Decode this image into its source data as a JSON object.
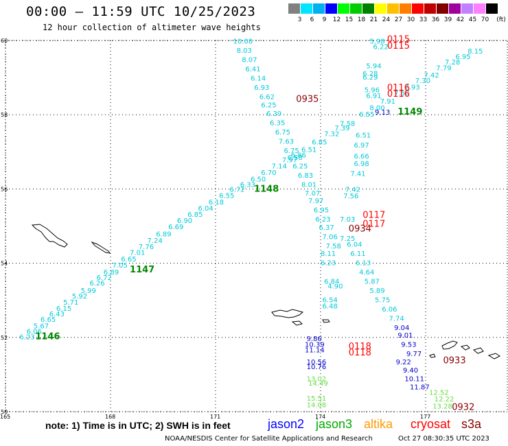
{
  "header": {
    "title": "00:00 — 11:59 UTC 10/25/2023",
    "subtitle": "12 hour collection of altimeter wave heights"
  },
  "legend": {
    "unit_label": "(ft)",
    "bins": [
      {
        "label": "3",
        "color": "#808080"
      },
      {
        "label": "6",
        "color": "#00e5ff"
      },
      {
        "label": "9",
        "color": "#00b0f0"
      },
      {
        "label": "12",
        "color": "#0000ff"
      },
      {
        "label": "15",
        "color": "#00ff00"
      },
      {
        "label": "18",
        "color": "#00cc00"
      },
      {
        "label": "21",
        "color": "#008000"
      },
      {
        "label": "24",
        "color": "#ffff00"
      },
      {
        "label": "27",
        "color": "#ffc000"
      },
      {
        "label": "30",
        "color": "#ff8000"
      },
      {
        "label": "33",
        "color": "#ff0000"
      },
      {
        "label": "36",
        "color": "#c00000"
      },
      {
        "label": "39",
        "color": "#800000"
      },
      {
        "label": "42",
        "color": "#a000a0"
      },
      {
        "label": "45",
        "color": "#c080ff"
      },
      {
        "label": "70",
        "color": "#ff80ff"
      },
      {
        "label": "",
        "color": "#000000"
      }
    ]
  },
  "map": {
    "lon_range": [
      165,
      178
    ],
    "lat_range": [
      50,
      60
    ],
    "lat_ticks": [
      "60",
      "58",
      "56",
      "54",
      "52",
      "50"
    ],
    "lon_ticks": [
      "165",
      "168",
      "171",
      "174",
      "177"
    ],
    "colors": {
      "cyan": "#00c8d8",
      "blue": "#0000cc",
      "green_light": "#66dd44",
      "green_dark": "#008800",
      "red": "#ff0000",
      "dark_red": "#880000"
    },
    "tracks": {
      "sw_ne": [
        [
          "6.23",
          165.4,
          51.95
        ],
        [
          "6.06",
          165.6,
          52.1
        ],
        [
          "5.67",
          165.8,
          52.25
        ],
        [
          "6.65",
          166.0,
          52.42
        ],
        [
          "6.43",
          166.25,
          52.57
        ],
        [
          "6.15",
          166.45,
          52.72
        ],
        [
          "5.71",
          166.65,
          52.88
        ],
        [
          "5.92",
          166.9,
          53.05
        ],
        [
          "5.99",
          167.15,
          53.2
        ],
        [
          "6.26",
          167.4,
          53.4
        ],
        [
          "6.72",
          167.6,
          53.55
        ],
        [
          "6.89",
          167.8,
          53.7
        ],
        [
          "7.05",
          168.05,
          53.88
        ],
        [
          "6.65",
          168.3,
          54.05
        ],
        [
          "7.01",
          168.55,
          54.22
        ],
        [
          "7.76",
          168.8,
          54.38
        ],
        [
          "7.24",
          169.05,
          54.55
        ],
        [
          "6.89",
          169.3,
          54.72
        ],
        [
          "6.69",
          169.65,
          54.92
        ],
        [
          "6.90",
          169.9,
          55.08
        ],
        [
          "6.85",
          170.2,
          55.25
        ],
        [
          "6.04",
          170.5,
          55.42
        ],
        [
          "6.18",
          170.8,
          55.58
        ],
        [
          "6.55",
          171.1,
          55.76
        ],
        [
          "6.72",
          171.4,
          55.92
        ],
        [
          "6.33",
          171.7,
          56.05
        ],
        [
          "6.50",
          172.0,
          56.2
        ],
        [
          "6.70",
          172.3,
          56.38
        ],
        [
          "7.14",
          172.6,
          56.55
        ],
        [
          "7.97",
          172.9,
          56.72
        ],
        [
          "6.86",
          173.15,
          56.85
        ],
        [
          "6.51",
          173.45,
          57.0
        ],
        [
          "6.85",
          173.75,
          57.2
        ],
        [
          "7.32",
          174.1,
          57.42
        ],
        [
          "7.39",
          174.4,
          57.58
        ],
        [
          "7.58",
          174.55,
          57.7
        ],
        [
          "8.00",
          175.4,
          58.12
        ],
        [
          "7.91",
          175.7,
          58.3
        ],
        [
          "7.58",
          176.1,
          58.52
        ],
        [
          "7.93",
          176.4,
          58.68
        ],
        [
          "7.30",
          176.7,
          58.85
        ],
        [
          "7.42",
          176.95,
          59.0
        ],
        [
          "7.79",
          177.3,
          59.2
        ],
        [
          "7.28",
          177.55,
          59.35
        ],
        [
          "6.95",
          177.85,
          59.5
        ],
        [
          "8.15",
          178.2,
          59.65
        ]
      ],
      "nw_se": [
        [
          "10.08",
          171.5,
          59.92
        ],
        [
          "8.03",
          171.6,
          59.67
        ],
        [
          "8.07",
          171.75,
          59.42
        ],
        [
          "6.41",
          171.85,
          59.17
        ],
        [
          "6.14",
          172.0,
          58.92
        ],
        [
          "6.93",
          172.1,
          58.67
        ],
        [
          "6.62",
          172.25,
          58.42
        ],
        [
          "6.25",
          172.3,
          58.2
        ],
        [
          "6.39",
          172.45,
          57.97
        ],
        [
          "6.35",
          172.55,
          57.72
        ],
        [
          "6.75",
          172.7,
          57.47
        ],
        [
          "7.63",
          172.8,
          57.22
        ],
        [
          "6.75",
          172.95,
          56.97
        ],
        [
          "6.58",
          173.05,
          56.78
        ],
        [
          "6.25",
          173.2,
          56.55
        ],
        [
          "6.83",
          173.35,
          56.3
        ],
        [
          "8.01",
          173.45,
          56.05
        ],
        [
          "7.07",
          173.55,
          55.82
        ],
        [
          "7.97",
          173.65,
          55.62
        ],
        [
          "6.95",
          173.8,
          55.37
        ],
        [
          "6.23",
          173.85,
          55.12
        ],
        [
          "6.37",
          173.95,
          54.9
        ],
        [
          "7.06",
          174.05,
          54.65
        ],
        [
          "7.58",
          174.15,
          54.4
        ],
        [
          "8.11",
          174.0,
          54.2
        ],
        [
          "6.23",
          174.0,
          53.95
        ],
        [
          "6.84",
          174.1,
          53.45
        ],
        [
          "4.90",
          174.2,
          53.32
        ],
        [
          "6.54",
          174.05,
          52.95
        ],
        [
          "6.48",
          174.05,
          52.78
        ]
      ],
      "middle": [
        [
          "6.55",
          175.1,
          57.95
        ],
        [
          "6.51",
          175.0,
          57.38
        ],
        [
          "6.97",
          174.95,
          57.12
        ],
        [
          "6.66",
          174.95,
          56.82
        ],
        [
          "6.98",
          174.95,
          56.62
        ],
        [
          "7.41",
          174.85,
          56.35
        ],
        [
          "7.42",
          174.7,
          55.92
        ],
        [
          "7.56",
          174.65,
          55.75
        ],
        [
          "7.03",
          174.55,
          55.12
        ],
        [
          "7.25",
          174.55,
          54.6
        ],
        [
          "6.04",
          174.75,
          54.45
        ],
        [
          "6.11",
          174.85,
          54.2
        ],
        [
          "6.13",
          175.0,
          53.95
        ],
        [
          "4.64",
          175.1,
          53.7
        ],
        [
          "5.87",
          175.25,
          53.45
        ],
        [
          "5.89",
          175.4,
          53.2
        ],
        [
          "5.75",
          175.55,
          52.95
        ],
        [
          "6.06",
          175.75,
          52.7
        ],
        [
          "7.74",
          175.95,
          52.45
        ]
      ],
      "top_cluster": [
        [
          "5.98",
          175.4,
          59.92
        ],
        [
          "6.22",
          175.5,
          59.77
        ],
        [
          "5.94",
          175.3,
          59.25
        ],
        [
          "6.28",
          175.2,
          59.05
        ],
        [
          "6.29",
          175.2,
          58.95
        ],
        [
          "5.96",
          175.25,
          58.6
        ],
        [
          "6.91",
          175.3,
          58.45
        ]
      ],
      "blue_track": [
        [
          "9.13",
          175.55,
          58.0
        ],
        [
          "9.04",
          176.1,
          52.2
        ],
        [
          "9.01",
          176.2,
          52.0
        ],
        [
          "9.53",
          176.3,
          51.75
        ],
        [
          "9.77",
          176.45,
          51.5
        ],
        [
          "9.22",
          176.15,
          51.28
        ],
        [
          "9.40",
          176.35,
          51.05
        ],
        [
          "10.11",
          176.4,
          50.82
        ],
        [
          "11.87",
          176.55,
          50.6
        ],
        [
          "9.86",
          173.6,
          51.9
        ],
        [
          "10.39",
          173.55,
          51.75
        ],
        [
          "11.14",
          173.55,
          51.6
        ],
        [
          "10.56",
          173.6,
          51.28
        ],
        [
          "10.76",
          173.6,
          51.15
        ]
      ],
      "green_light": [
        [
          "13.02",
          173.6,
          50.82
        ],
        [
          "14.49",
          173.65,
          50.7
        ],
        [
          "15.51",
          173.6,
          50.3
        ],
        [
          "14.08",
          173.6,
          50.12
        ],
        [
          "12.52",
          177.1,
          50.45
        ],
        [
          "12.22",
          177.25,
          50.28
        ],
        [
          "13.28",
          177.2,
          50.08
        ]
      ]
    },
    "time_labels": [
      {
        "text": "1146",
        "lon": 165.85,
        "lat": 51.95,
        "tone": "green_dark"
      },
      {
        "text": "1147",
        "lon": 168.55,
        "lat": 53.75,
        "tone": "green_dark"
      },
      {
        "text": "1148",
        "lon": 172.1,
        "lat": 55.92,
        "tone": "green_dark"
      },
      {
        "text": "1149",
        "lon": 176.2,
        "lat": 58.0,
        "tone": "green_dark"
      },
      {
        "text": "0935",
        "lon": 173.3,
        "lat": 58.35,
        "tone": "dark_red"
      },
      {
        "text": "0934",
        "lon": 174.8,
        "lat": 54.85,
        "tone": "dark_red"
      },
      {
        "text": "0933",
        "lon": 177.5,
        "lat": 51.3,
        "tone": "dark_red"
      },
      {
        "text": "0932",
        "lon": 177.75,
        "lat": 50.05,
        "tone": "dark_red"
      },
      {
        "text": "0115",
        "lon": 175.9,
        "lat": 59.95,
        "tone": "red"
      },
      {
        "text": "0115",
        "lon": 175.9,
        "lat": 59.78,
        "tone": "red"
      },
      {
        "text": "0116",
        "lon": 175.9,
        "lat": 58.65,
        "tone": "red"
      },
      {
        "text": "0116",
        "lon": 175.9,
        "lat": 58.48,
        "tone": "red"
      },
      {
        "text": "0117",
        "lon": 175.2,
        "lat": 55.22,
        "tone": "red"
      },
      {
        "text": "0117",
        "lon": 175.2,
        "lat": 54.98,
        "tone": "red"
      },
      {
        "text": "0118",
        "lon": 174.8,
        "lat": 51.68,
        "tone": "red"
      },
      {
        "text": "0118",
        "lon": 174.8,
        "lat": 51.52,
        "tone": "red"
      }
    ]
  },
  "footer": {
    "note": "note: 1) Time is in UTC; 2) SWH is in feet",
    "satellites": [
      {
        "name": "jason2",
        "color": "#0000ff"
      },
      {
        "name": "jason3",
        "color": "#00aa00"
      },
      {
        "name": "altika",
        "color": "#ff9900"
      },
      {
        "name": "cryosat",
        "color": "#ff0000"
      },
      {
        "name": "s3a",
        "color": "#880000"
      }
    ],
    "credit": "NOAA/NESDIS Center for Satellite Applications and Research",
    "timestamp": "Oct 27 08:30:35 UTC 2023"
  }
}
